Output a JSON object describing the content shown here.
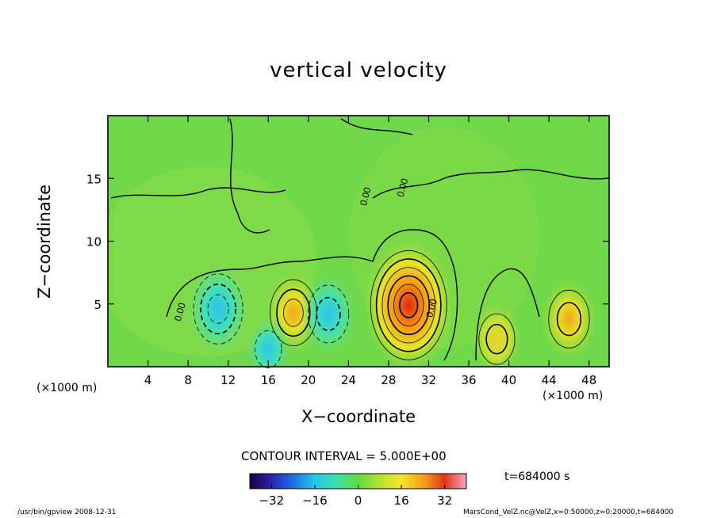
{
  "chart_data": {
    "type": "heatmap",
    "title": "vertical velocity",
    "xlabel": "X−coordinate",
    "ylabel": "Z−coordinate",
    "x_unit": "(×1000 m)",
    "y_unit": "(×1000 m)",
    "xlim": [
      0,
      50
    ],
    "ylim": [
      0,
      20
    ],
    "xticks": [
      4,
      8,
      12,
      16,
      20,
      24,
      28,
      32,
      36,
      40,
      44,
      48
    ],
    "yticks": [
      5,
      10,
      15
    ],
    "contour_interval": "CONTOUR INTERVAL = 5.000E+00",
    "contour_labels": [
      "0.00",
      "0.00",
      "0.00",
      "0.00"
    ],
    "colorbar": {
      "min": -40,
      "max": 40,
      "ticks": [
        -32,
        -16,
        0,
        16,
        32
      ],
      "tick_labels": [
        "−32",
        "−16",
        "0",
        "16",
        "32"
      ]
    },
    "features": [
      {
        "x": 30,
        "z": 4.9,
        "value": 30
      },
      {
        "x": 18.5,
        "z": 4.3,
        "value": 15
      },
      {
        "x": 38.8,
        "z": 2.2,
        "value": 10
      },
      {
        "x": 46,
        "z": 3.8,
        "value": 14
      },
      {
        "x": 11,
        "z": 4.6,
        "value": -17
      },
      {
        "x": 22,
        "z": 4.2,
        "value": -14
      },
      {
        "x": 16,
        "z": 1.4,
        "value": -8
      }
    ],
    "time": "t=684000 s"
  },
  "footer": {
    "left": "/usr/bin/gpview   2008-12-31",
    "right": "MarsCond_VelZ.nc@VelZ,x=0:50000,z=0:20000,t=684000"
  }
}
